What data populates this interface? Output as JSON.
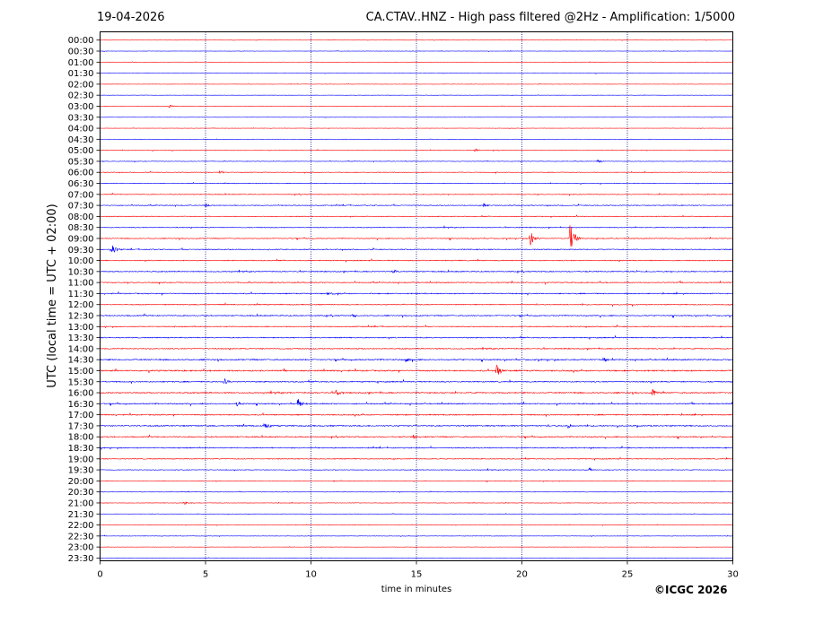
{
  "header": {
    "date": "19-04-2026",
    "title": "CA.CTAV..HNZ - High pass filtered @2Hz - Amplification: 1/5000"
  },
  "credit": "©ICGC 2026",
  "colors": {
    "trace_a": "#ff0000",
    "trace_b": "#0000ff",
    "grid": "#000080"
  },
  "chart_data": {
    "type": "line",
    "xlabel": "time in minutes",
    "ylabel": "UTC (local time = UTC + 02:00)",
    "xlim": [
      0,
      30
    ],
    "x_ticks": [
      0,
      5,
      10,
      15,
      20,
      25,
      30
    ],
    "grid": "vertical dotted at 5, 10, 15, 20, 25",
    "rows": [
      "00:00",
      "00:30",
      "01:00",
      "01:30",
      "02:00",
      "02:30",
      "03:00",
      "03:30",
      "04:00",
      "04:30",
      "05:00",
      "05:30",
      "06:00",
      "06:30",
      "07:00",
      "07:30",
      "08:00",
      "08:30",
      "09:00",
      "09:30",
      "10:00",
      "10:30",
      "11:00",
      "11:30",
      "12:00",
      "12:30",
      "13:00",
      "13:30",
      "14:00",
      "14:30",
      "15:00",
      "15:30",
      "16:00",
      "16:30",
      "17:00",
      "17:30",
      "18:00",
      "18:30",
      "19:00",
      "19:30",
      "20:00",
      "20:30",
      "21:00",
      "21:30",
      "22:00",
      "22:30",
      "23:00",
      "23:30"
    ],
    "noise_level": [
      0.3,
      0.3,
      0.3,
      0.3,
      0.3,
      0.3,
      0.3,
      0.3,
      0.3,
      0.3,
      0.5,
      0.5,
      0.6,
      0.6,
      0.7,
      0.8,
      0.7,
      0.8,
      0.8,
      0.9,
      0.9,
      1.0,
      0.9,
      1.0,
      0.9,
      1.0,
      0.9,
      1.0,
      1.0,
      1.2,
      1.3,
      1.1,
      1.2,
      1.1,
      1.1,
      1.2,
      1.0,
      1.0,
      0.8,
      0.7,
      0.5,
      0.5,
      0.5,
      0.4,
      0.4,
      0.4,
      0.3,
      0.3
    ],
    "events": [
      {
        "row": "03:00",
        "minute": 3.3,
        "amp": 2
      },
      {
        "row": "05:00",
        "minute": 17.8,
        "amp": 2
      },
      {
        "row": "05:30",
        "minute": 23.6,
        "amp": 2
      },
      {
        "row": "06:00",
        "minute": 5.7,
        "amp": 2
      },
      {
        "row": "07:30",
        "minute": 5.0,
        "amp": 2
      },
      {
        "row": "07:30",
        "minute": 18.2,
        "amp": 2.5
      },
      {
        "row": "09:00",
        "minute": 20.4,
        "amp": 10
      },
      {
        "row": "09:00",
        "minute": 22.3,
        "amp": 18
      },
      {
        "row": "09:30",
        "minute": 0.6,
        "amp": 5
      },
      {
        "row": "10:30",
        "minute": 13.9,
        "amp": 2
      },
      {
        "row": "11:30",
        "minute": 10.8,
        "amp": 2
      },
      {
        "row": "12:30",
        "minute": 12.0,
        "amp": 2
      },
      {
        "row": "14:30",
        "minute": 14.5,
        "amp": 3
      },
      {
        "row": "14:30",
        "minute": 23.9,
        "amp": 3
      },
      {
        "row": "15:00",
        "minute": 18.8,
        "amp": 8
      },
      {
        "row": "15:30",
        "minute": 5.9,
        "amp": 4
      },
      {
        "row": "16:00",
        "minute": 11.2,
        "amp": 5
      },
      {
        "row": "16:00",
        "minute": 26.2,
        "amp": 5
      },
      {
        "row": "16:30",
        "minute": 9.4,
        "amp": 6
      },
      {
        "row": "16:30",
        "minute": 6.5,
        "amp": 3
      },
      {
        "row": "17:30",
        "minute": 7.8,
        "amp": 4
      },
      {
        "row": "17:30",
        "minute": 22.2,
        "amp": 3
      },
      {
        "row": "18:00",
        "minute": 14.9,
        "amp": 3
      },
      {
        "row": "19:30",
        "minute": 23.2,
        "amp": 2
      },
      {
        "row": "21:00",
        "minute": 4.0,
        "amp": 2
      }
    ]
  }
}
